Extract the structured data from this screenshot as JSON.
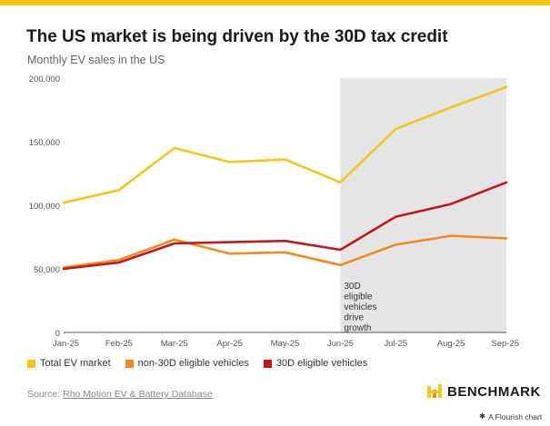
{
  "title": "The US market is being driven by the 30D tax credit",
  "subtitle": "Monthly EV sales in the US",
  "colors": {
    "accent": "#f5c518",
    "total": "#f5c518",
    "non30d": "#f28a20",
    "eligible": "#c0181c",
    "shade": "#e5e5e5",
    "axis": "#555555"
  },
  "chart_data": {
    "type": "line",
    "x": [
      "Jan-25",
      "Feb-25",
      "Mar-25",
      "Apr-25",
      "May-25",
      "Jun-25",
      "Jul-25",
      "Aug-25",
      "Sep-25"
    ],
    "series": [
      {
        "name": "Total EV market",
        "color": "#f5c518",
        "values": [
          102000,
          112000,
          145000,
          134000,
          136000,
          118000,
          160000,
          177000,
          193000
        ]
      },
      {
        "name": "non-30D eligible vehicles",
        "color": "#f28a20",
        "values": [
          51000,
          57000,
          73000,
          62000,
          63000,
          53000,
          69000,
          76000,
          74000
        ]
      },
      {
        "name": "30D eligible vehicles",
        "color": "#c0181c",
        "values": [
          50000,
          55000,
          70000,
          71000,
          72000,
          65000,
          91000,
          101000,
          118000
        ]
      }
    ],
    "ylim": [
      0,
      200000
    ],
    "yticks": [
      {
        "value": 0,
        "label": "0"
      },
      {
        "value": 50000,
        "label": "50,000"
      },
      {
        "value": 100000,
        "label": "100,000"
      },
      {
        "value": 150000,
        "label": "150,000"
      },
      {
        "value": 200000,
        "label": "200,000"
      }
    ],
    "shaded_region": {
      "from": "Jun-25",
      "to": "Sep-25"
    },
    "annotation": {
      "lines": [
        "30D",
        "eligible",
        "vehicles",
        "drive",
        "growth"
      ]
    },
    "legend_position": "bottom-left"
  },
  "legend": [
    {
      "label": "Total EV market",
      "color": "#f5c518"
    },
    {
      "label": "non-30D eligible vehicles",
      "color": "#f28a20"
    },
    {
      "label": "30D eligible vehicles",
      "color": "#c0181c"
    }
  ],
  "source": {
    "prefix": "Source: ",
    "link": "Rho Motion EV & Battery Database"
  },
  "brand": {
    "name": "BENCHMARK"
  },
  "footer": {
    "flourish": "A Flourish chart"
  }
}
